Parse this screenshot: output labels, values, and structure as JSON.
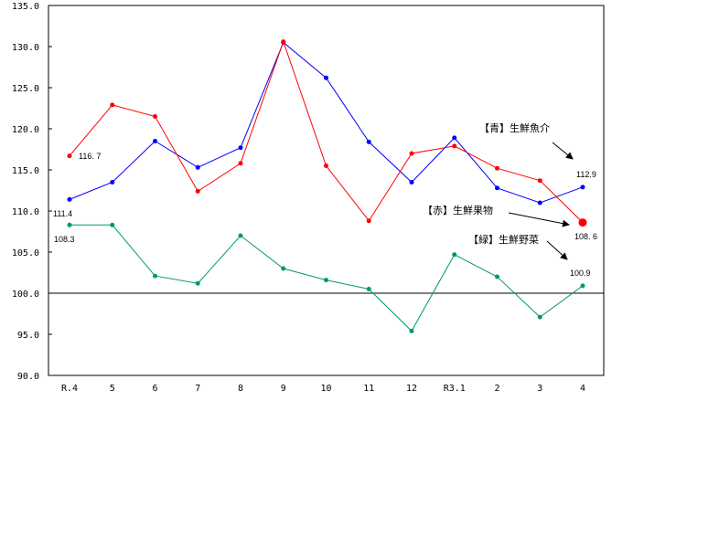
{
  "chart_data": {
    "type": "line",
    "title": "",
    "xlabel": "",
    "ylabel": "",
    "ylim": [
      90.0,
      135.0
    ],
    "yticks": [
      "135.0",
      "130.0",
      "125.0",
      "120.0",
      "115.0",
      "110.0",
      "105.0",
      "100.0",
      "95.0",
      "90.0"
    ],
    "categories": [
      "R.4",
      "5",
      "6",
      "7",
      "8",
      "9",
      "10",
      "11",
      "12",
      "R3.1",
      "2",
      "3",
      "4"
    ],
    "reference_line": 100.0,
    "grid": false,
    "series": [
      {
        "name": "【赤】生鮮果物",
        "color": "#ff0000",
        "values": [
          116.7,
          122.9,
          121.5,
          112.4,
          115.8,
          130.6,
          115.5,
          108.8,
          117.0,
          117.9,
          115.2,
          113.7,
          108.6
        ]
      },
      {
        "name": "【青】生鮮魚介",
        "color": "#0000ff",
        "values": [
          111.4,
          113.5,
          118.5,
          115.3,
          117.7,
          130.5,
          126.2,
          118.4,
          113.5,
          118.9,
          112.8,
          111.0,
          112.9
        ]
      },
      {
        "name": "【緑】生鮮野菜",
        "color": "#009966",
        "values": [
          108.3,
          108.3,
          102.1,
          101.2,
          107.0,
          103.0,
          101.6,
          100.5,
          95.4,
          104.7,
          102.0,
          97.1,
          100.9
        ]
      }
    ],
    "annotations": [
      {
        "text": "116. 7",
        "series": "【赤】生鮮果物",
        "point": "R.4"
      },
      {
        "text": "111.4",
        "series": "【青】生鮮魚介",
        "point": "R.4"
      },
      {
        "text": "108.3",
        "series": "【緑】生鮮野菜",
        "point": "R.4"
      },
      {
        "text": "112.9",
        "series": "【青】生鮮魚介",
        "point": "4"
      },
      {
        "text": "108. 6",
        "series": "【赤】生鮮果物",
        "point": "4"
      },
      {
        "text": "100.9",
        "series": "【緑】生鮮野菜",
        "point": "4"
      }
    ]
  },
  "legend": {
    "blue_label": "【青】生鮮魚介",
    "red_label": "【赤】生鮮果物",
    "green_label": "【緑】生鮮野菜"
  },
  "labels": {
    "red_start": "116. 7",
    "blue_start": "111.4",
    "green_start": "108.3",
    "blue_end": "112.9",
    "red_end": "108. 6",
    "green_end": "100.9"
  }
}
